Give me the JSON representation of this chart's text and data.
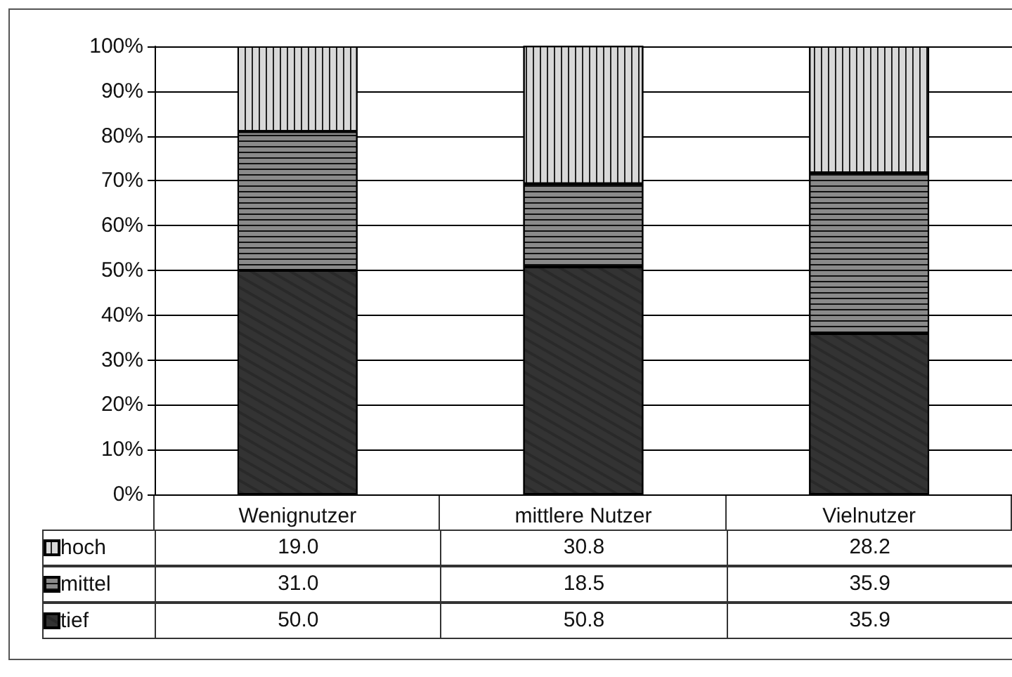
{
  "chart_data": {
    "type": "bar",
    "stacked": true,
    "categories": [
      "Wenignutzer",
      "mittlere Nutzer",
      "Vielnutzer"
    ],
    "series": [
      {
        "name": "tief",
        "color": "#333333",
        "values": [
          50.0,
          50.8,
          35.9
        ],
        "value_labels": [
          "50.0",
          "50.8",
          "35.9"
        ]
      },
      {
        "name": "mittel",
        "color": "#8a8a8a",
        "values": [
          31.0,
          18.5,
          35.9
        ],
        "value_labels": [
          "31.0",
          "18.5",
          "35.9"
        ]
      },
      {
        "name": "hoch",
        "color": "#d8d8d8",
        "values": [
          19.0,
          30.8,
          28.2
        ],
        "value_labels": [
          "19.0",
          "30.8",
          "28.2"
        ]
      }
    ],
    "ylim": [
      0,
      100
    ],
    "yticks": [
      {
        "value": 0,
        "label": "0%"
      },
      {
        "value": 10,
        "label": "10%"
      },
      {
        "value": 20,
        "label": "20%"
      },
      {
        "value": 30,
        "label": "30%"
      },
      {
        "value": 40,
        "label": "40%"
      },
      {
        "value": 50,
        "label": "50%"
      },
      {
        "value": 60,
        "label": "60%"
      },
      {
        "value": 70,
        "label": "70%"
      },
      {
        "value": 80,
        "label": "80%"
      },
      {
        "value": 90,
        "label": "90%"
      },
      {
        "value": 100,
        "label": "100%"
      }
    ],
    "grid": "y",
    "legend": "bottom left"
  }
}
